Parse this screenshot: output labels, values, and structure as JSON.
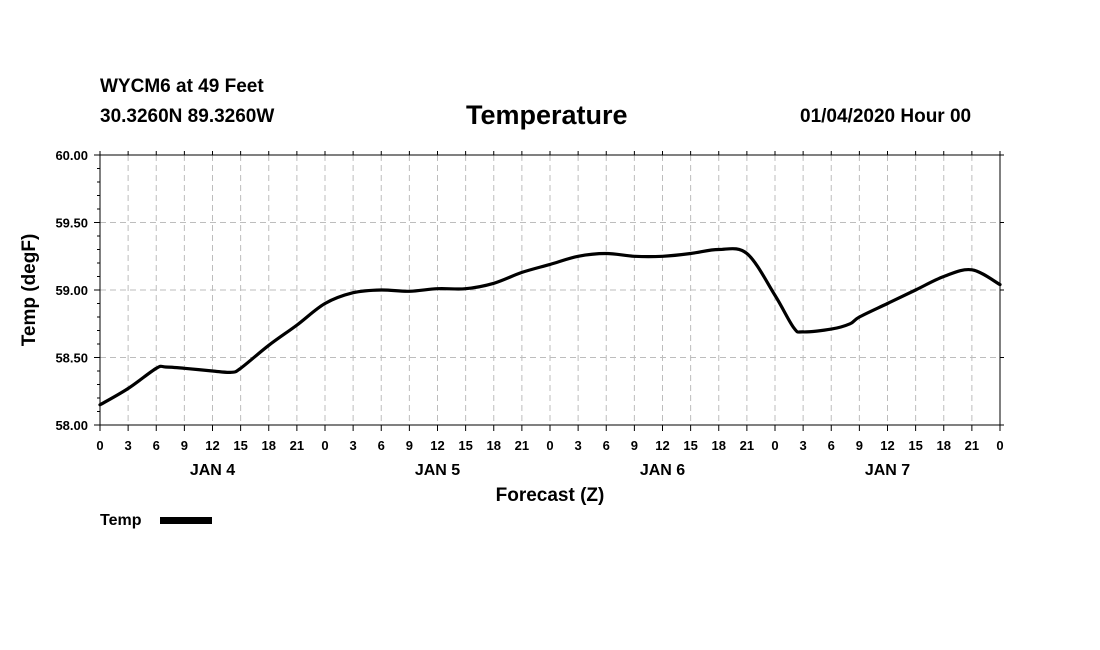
{
  "header": {
    "station": "WYCM6 at 49 Feet",
    "coords": "30.3260N 89.3260W",
    "title": "Temperature",
    "run_time": "01/04/2020 Hour 00"
  },
  "chart_data": {
    "type": "line",
    "title": "Temperature",
    "xlabel": "Forecast (Z)",
    "ylabel": "Temp (degF)",
    "ylim": [
      58.0,
      60.0
    ],
    "yticks": [
      "58.00",
      "58.50",
      "59.00",
      "59.50",
      "60.00"
    ],
    "x_unit": "forecast hour",
    "xlim": [
      0,
      96
    ],
    "x_tick_labels": [
      "0",
      "3",
      "6",
      "9",
      "12",
      "15",
      "18",
      "21",
      "0",
      "3",
      "6",
      "9",
      "12",
      "15",
      "18",
      "21",
      "0",
      "3",
      "6",
      "9",
      "12",
      "15",
      "18",
      "21",
      "0",
      "3",
      "6",
      "9",
      "12",
      "15",
      "18",
      "21",
      "0"
    ],
    "day_labels": [
      "JAN 4",
      "JAN 5",
      "JAN 6",
      "JAN 7"
    ],
    "grid": true,
    "legend_position": "bottom-left",
    "series": [
      {
        "name": "Temp",
        "color": "#000000",
        "x": [
          0,
          3,
          6,
          7,
          9,
          12,
          14,
          15,
          18,
          21,
          24,
          27,
          30,
          33,
          36,
          39,
          42,
          45,
          48,
          51,
          54,
          57,
          60,
          63,
          66,
          69,
          72,
          74,
          75,
          78,
          80,
          81,
          84,
          87,
          90,
          93,
          96
        ],
        "y": [
          58.15,
          58.27,
          58.42,
          58.43,
          58.42,
          58.4,
          58.39,
          58.42,
          58.59,
          58.74,
          58.9,
          58.98,
          59.0,
          58.99,
          59.01,
          59.01,
          59.05,
          59.13,
          59.19,
          59.25,
          59.27,
          59.25,
          59.25,
          59.27,
          59.3,
          59.27,
          58.96,
          58.72,
          58.69,
          58.71,
          58.75,
          58.8,
          58.9,
          59.0,
          59.1,
          59.15,
          59.04
        ]
      }
    ]
  }
}
